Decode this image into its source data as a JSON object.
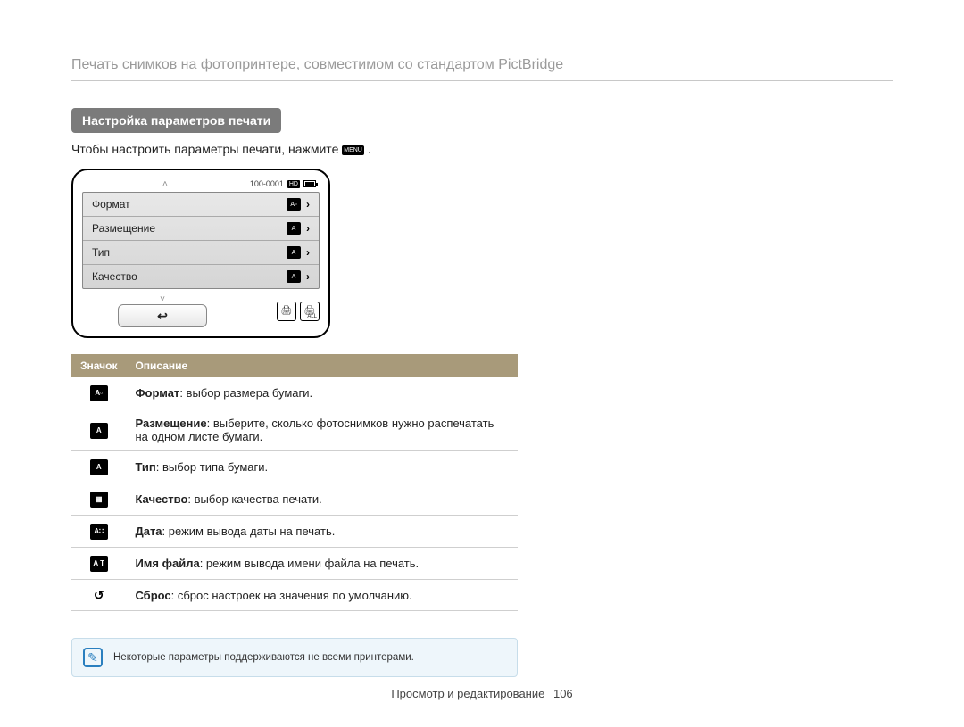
{
  "page": {
    "title": "Печать снимков на фотопринтере, совместимом со стандартом PictBridge",
    "section_heading": "Настройка параметров печати",
    "instruction": "Чтобы настроить параметры печати, нажмите ",
    "menu_badge": "MENU",
    "instruction_tail": "."
  },
  "lcd": {
    "file_counter": "100-0001",
    "hd_badge": "HD",
    "rows": [
      {
        "label": "Формат",
        "icon_glyph": "A▫"
      },
      {
        "label": "Размещение",
        "icon_glyph": "A"
      },
      {
        "label": "Тип",
        "icon_glyph": "A"
      },
      {
        "label": "Качество",
        "icon_glyph": "A"
      }
    ],
    "back_glyph": "↩",
    "print_all_sub": "ALL"
  },
  "table": {
    "header_icon": "Значок",
    "header_desc": "Описание",
    "header_bg": "#a89a7a",
    "rows": [
      {
        "icon_glyph": "A▫",
        "term": "Формат",
        "desc": ": выбор размера бумаги."
      },
      {
        "icon_glyph": "A",
        "term": "Размещение",
        "desc": ": выберите, сколько фотоснимков нужно распечатать на одном листе бумаги."
      },
      {
        "icon_glyph": "A",
        "term": "Тип",
        "desc": ": выбор типа бумаги."
      },
      {
        "icon_glyph": "▦",
        "term": "Качество",
        "desc": ": выбор качества печати."
      },
      {
        "icon_glyph": "A∷",
        "term": "Дата",
        "desc": ": режим вывода даты на печать."
      },
      {
        "icon_glyph": "A T",
        "term": "Имя файла",
        "desc": ": режим вывода имени файла на печать."
      },
      {
        "icon_glyph": "↺",
        "term": "Сброс",
        "desc": ": сброс настроек на значения по умолчанию."
      }
    ]
  },
  "note": {
    "text": "Некоторые параметры поддерживаются не всеми принтерами."
  },
  "footer": {
    "section": "Просмотр и редактирование",
    "page_number": "106"
  },
  "colors": {
    "title_gray": "#9a9a9a",
    "heading_bg": "#7b7b7b",
    "note_border": "#c7ddea",
    "note_bg": "#eef6fb",
    "note_icon": "#2a7fbf"
  }
}
